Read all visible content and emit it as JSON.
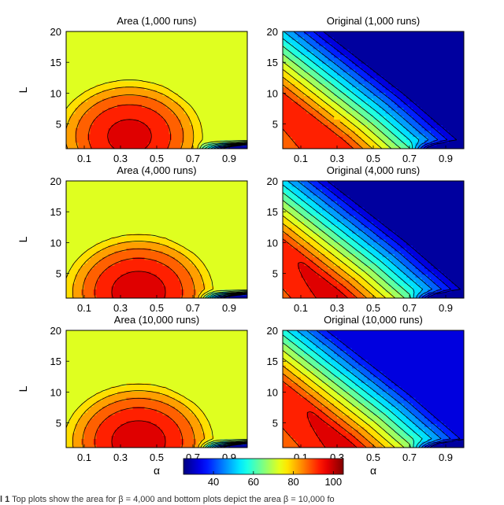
{
  "chart_data": {
    "type": "heatmap",
    "x_ticks": [
      "0.1",
      "0.3",
      "0.5",
      "0.7",
      "0.9"
    ],
    "x_values": [
      0.1,
      0.3,
      0.5,
      0.7,
      0.9
    ],
    "y_ticks": [
      "5",
      "10",
      "15",
      "20"
    ],
    "y_values": [
      5,
      10,
      15,
      20
    ],
    "xlim": [
      0,
      1.0
    ],
    "ylim": [
      1,
      20
    ],
    "xlabel": "α",
    "ylabel": "L",
    "colormap": "jet",
    "colorbar": {
      "ticks": [
        "40",
        "60",
        "80",
        "100"
      ],
      "tick_values": [
        40,
        60,
        80,
        100
      ],
      "range": [
        25,
        105
      ]
    },
    "panels": [
      {
        "title": "Area (1,000 runs)",
        "method": "area",
        "runs": 1000,
        "peak_value": 97,
        "peak_alpha": 0.35,
        "peak_L": 3,
        "corner_value": 77
      },
      {
        "title": "Original (1,000 runs)",
        "method": "original",
        "runs": 1000,
        "peak_value": 95,
        "peak_alpha": 0.3,
        "peak_L": 2,
        "corner_value": 28
      },
      {
        "title": "Area (4,000 runs)",
        "method": "area",
        "runs": 4000,
        "peak_value": 98,
        "peak_alpha": 0.4,
        "peak_L": 2,
        "corner_value": 77
      },
      {
        "title": "Original (4,000 runs)",
        "method": "original",
        "runs": 4000,
        "peak_value": 97,
        "peak_alpha": 0.3,
        "peak_L": 2,
        "corner_value": 28
      },
      {
        "title": "Area (10,000 runs)",
        "method": "area",
        "runs": 10000,
        "peak_value": 98,
        "peak_alpha": 0.4,
        "peak_L": 2,
        "corner_value": 77
      },
      {
        "title": "Original (10,000 runs)",
        "method": "original",
        "runs": 10000,
        "peak_value": 97,
        "peak_alpha": 0.35,
        "peak_L": 2,
        "corner_value": 32
      }
    ]
  },
  "caption": {
    "label": "l 1",
    "text": "Top plots show the area for β = 4,000 and bottom plots depict the area β = 10,000 fo"
  }
}
